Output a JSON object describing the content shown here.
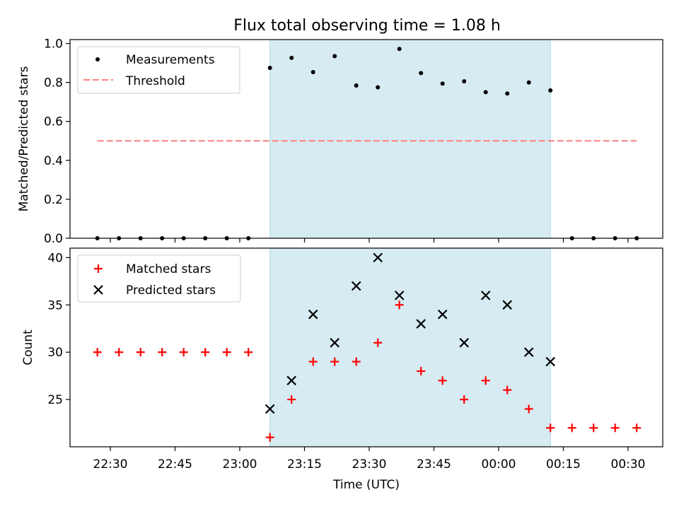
{
  "chart_data": [
    {
      "type": "scatter",
      "title": "Flux total observing time = 1.08 h",
      "xlabel": "",
      "ylabel": "Matched/Predicted stars",
      "ylim": [
        0.0,
        1.02
      ],
      "yticks": [
        "0.0",
        "0.2",
        "0.4",
        "0.6",
        "0.8",
        "1.0"
      ],
      "x_unit": "time (UTC)",
      "highlight_span": {
        "start": "23:07",
        "end": "00:12",
        "color": "#add8e6"
      },
      "threshold": {
        "name": "Threshold",
        "value": 0.5,
        "x_start": "22:27",
        "x_end": "00:32",
        "color": "#ff7f7f"
      },
      "series": [
        {
          "name": "Measurements",
          "color": "#000000",
          "marker": "dot",
          "x": [
            "22:27",
            "22:32",
            "22:37",
            "22:42",
            "22:47",
            "22:52",
            "22:57",
            "23:02",
            "23:07",
            "23:12",
            "23:17",
            "23:22",
            "23:27",
            "23:32",
            "23:37",
            "23:42",
            "23:47",
            "23:52",
            "23:57",
            "00:02",
            "00:07",
            "00:12",
            "00:17",
            "00:22",
            "00:27",
            "00:32"
          ],
          "y": [
            0,
            0,
            0,
            0,
            0,
            0,
            0,
            0,
            0.875,
            0.926,
            0.853,
            0.935,
            0.784,
            0.775,
            0.972,
            0.848,
            0.794,
            0.806,
            0.75,
            0.743,
            0.8,
            0.759,
            0,
            0,
            0,
            0
          ]
        }
      ],
      "legend": [
        "Measurements",
        "Threshold"
      ],
      "legend_loc": "upper left",
      "grid": false
    },
    {
      "type": "scatter",
      "title": "",
      "xlabel": "Time (UTC)",
      "ylabel": "Count",
      "ylim": [
        20,
        41
      ],
      "yticks": [
        "25",
        "30",
        "35",
        "40"
      ],
      "xticks": [
        "22:30",
        "22:45",
        "23:00",
        "23:15",
        "23:30",
        "23:45",
        "00:00",
        "00:15",
        "00:30"
      ],
      "highlight_span": {
        "start": "23:07",
        "end": "00:12",
        "color": "#add8e6"
      },
      "series": [
        {
          "name": "Matched stars",
          "color": "#ff0000",
          "marker": "plus",
          "x": [
            "22:27",
            "22:32",
            "22:37",
            "22:42",
            "22:47",
            "22:52",
            "22:57",
            "23:02",
            "23:07",
            "23:12",
            "23:17",
            "23:22",
            "23:27",
            "23:32",
            "23:37",
            "23:42",
            "23:47",
            "23:52",
            "23:57",
            "00:02",
            "00:07",
            "00:12",
            "00:17",
            "00:22",
            "00:27",
            "00:32"
          ],
          "y": [
            30,
            30,
            30,
            30,
            30,
            30,
            30,
            30,
            21,
            25,
            29,
            29,
            29,
            31,
            35,
            28,
            27,
            25,
            27,
            26,
            24,
            22,
            22,
            22,
            22,
            22
          ]
        },
        {
          "name": "Predicted stars",
          "color": "#000000",
          "marker": "x",
          "x": [
            "23:07",
            "23:12",
            "23:17",
            "23:22",
            "23:27",
            "23:32",
            "23:37",
            "23:42",
            "23:47",
            "23:52",
            "23:57",
            "00:02",
            "00:07",
            "00:12"
          ],
          "y": [
            24,
            27,
            34,
            31,
            37,
            40,
            36,
            33,
            34,
            31,
            36,
            35,
            30,
            29
          ]
        }
      ],
      "legend": [
        "Matched stars",
        "Predicted stars"
      ],
      "legend_loc": "upper left",
      "grid": false
    }
  ]
}
